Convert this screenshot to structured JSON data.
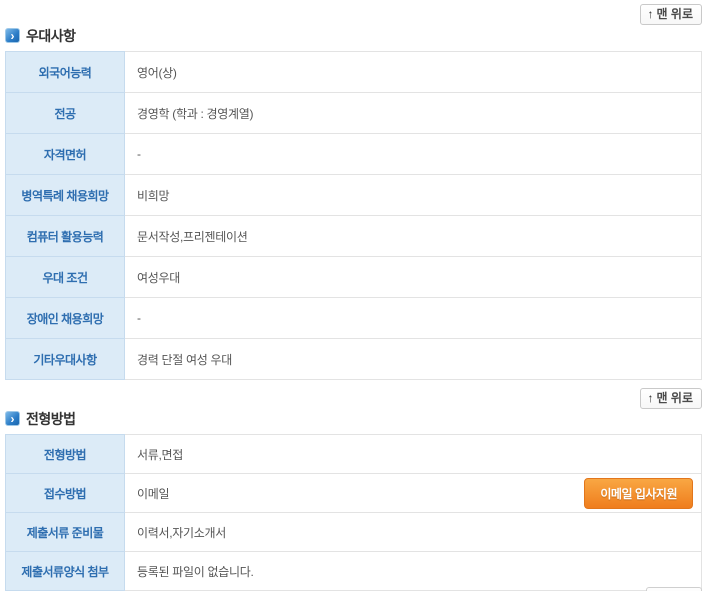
{
  "back_to_top": {
    "arrow": "↑",
    "label": "맨 위로"
  },
  "section_icon_glyph": "›",
  "sections": [
    {
      "title": "우대사항",
      "rows": [
        {
          "label": "외국어능력",
          "value": "영어(상)"
        },
        {
          "label": "전공",
          "value": "경영학 (학과 : 경영계열)"
        },
        {
          "label": "자격면허",
          "value": "-"
        },
        {
          "label": "병역특례 채용희망",
          "value": "비희망"
        },
        {
          "label": "컴퓨터 활용능력",
          "value": "문서작성,프리젠테이션"
        },
        {
          "label": "우대 조건",
          "value": "여성우대"
        },
        {
          "label": "장애인 채용희망",
          "value": "-"
        },
        {
          "label": "기타우대사항",
          "value": "경력 단절 여성 우대"
        }
      ]
    },
    {
      "title": "전형방법",
      "rows": [
        {
          "label": "전형방법",
          "value": "서류,면접"
        },
        {
          "label": "접수방법",
          "value": "이메일",
          "button": "이메일 입사지원"
        },
        {
          "label": "제출서류 준비물",
          "value": "이력서,자기소개서"
        },
        {
          "label": "제출서류양식 첨부",
          "value": "등록된 파일이 없습니다."
        }
      ]
    }
  ],
  "colors": {
    "label_text_blue": "#2e6eb0",
    "label_cell_bg": "#dcebf7",
    "cell_border_blue": "#c6dbee",
    "cell_border_gray": "#e3e3e3",
    "accent_orange": "#ef7d1d",
    "section_icon_blue": "#2a7cc7"
  }
}
